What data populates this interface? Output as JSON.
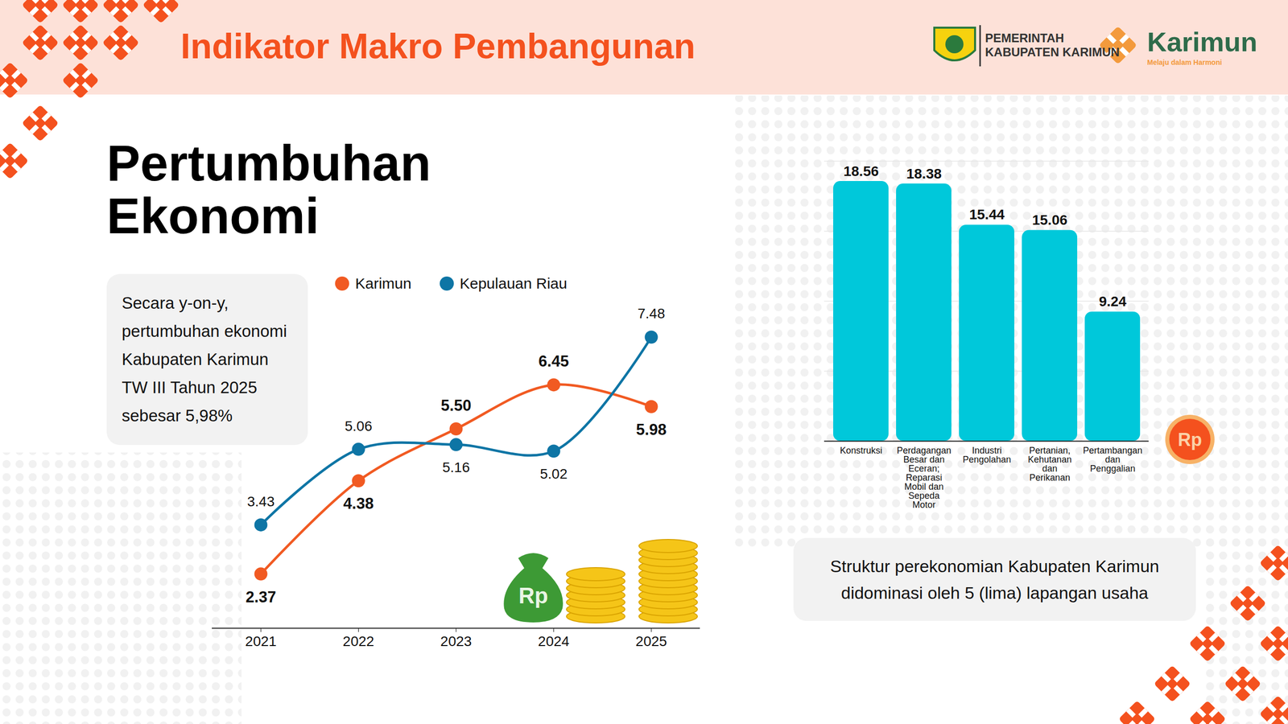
{
  "header": {
    "title": "Indikator Makro Pembangunan",
    "logo_text": [
      "PEMERINTAH",
      "KABUPATEN KARIMUN"
    ],
    "brand": "Karimun",
    "tagline": "Melaju dalam Harmoni"
  },
  "section_title": "Pertumbuhan Ekonomi",
  "note": "Secara y-on-y, pertumbuhan ekonomi Kabupaten Karimun TW III Tahun 2025 sebesar 5,98%",
  "caption": "Struktur perekonomian Kabupaten Karimun didominasi oleh 5 (lima) lapangan usaha",
  "icon_label": "Rp",
  "chart_data": [
    {
      "type": "line",
      "categories": [
        "2021",
        "2022",
        "2023",
        "2024",
        "2025"
      ],
      "series": [
        {
          "name": "Karimun",
          "color": "#f15a22",
          "values": [
            2.37,
            4.38,
            5.5,
            6.45,
            5.98
          ],
          "value_labels": [
            "2.37",
            "4.38",
            "5.50",
            "6.45",
            "5.98"
          ]
        },
        {
          "name": "Kepulauan Riau",
          "color": "#0e75a5",
          "values": [
            3.43,
            5.06,
            5.16,
            5.02,
            7.48
          ]
        }
      ],
      "ylim": [
        1.2,
        8
      ],
      "data_labels": true,
      "tick_labels": "x",
      "legend": "top",
      "marker": "circle"
    },
    {
      "type": "bar",
      "categories": [
        "Konstruksi",
        "Perdagangan Besar dan Eceran; Reparasi Mobil dan Sepeda Motor",
        "Industri Pengolahan",
        "Pertanian, Kehutanan dan Perikanan",
        "Pertambangan dan Penggalian"
      ],
      "values": [
        18.56,
        18.38,
        15.44,
        15.06,
        9.24
      ],
      "color": "#00c8da",
      "ylim": [
        0,
        20
      ],
      "yticks": [
        0,
        5,
        10,
        15,
        20
      ],
      "grid": true,
      "data_labels": true,
      "tick_labels": "x"
    }
  ]
}
